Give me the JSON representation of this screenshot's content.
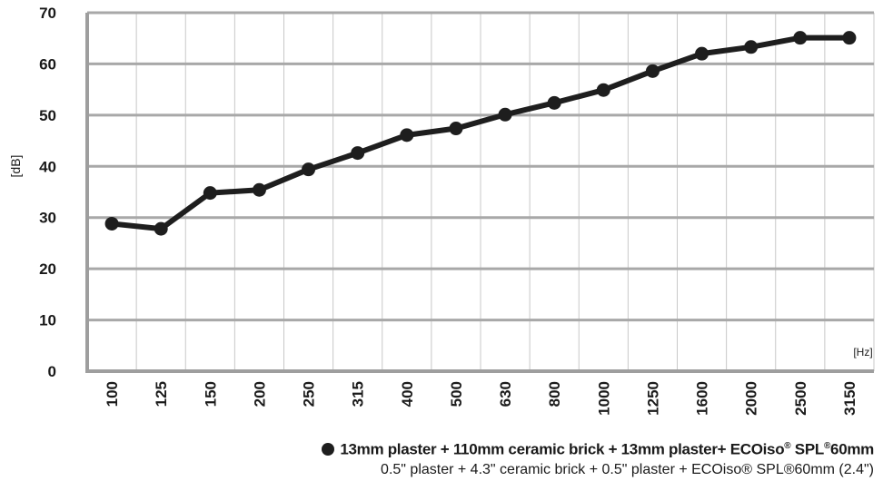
{
  "chart_data": {
    "type": "line",
    "ylabel": "[dB]",
    "xunit": "[Hz]",
    "ylim": [
      0,
      70
    ],
    "yticks": [
      0,
      10,
      20,
      30,
      40,
      50,
      60,
      70
    ],
    "categories": [
      "100",
      "125",
      "150",
      "200",
      "250",
      "315",
      "400",
      "500",
      "630",
      "800",
      "1000",
      "1250",
      "1600",
      "2000",
      "2500",
      "3150"
    ],
    "series": [
      {
        "name": "13mm plaster + 110mm ceramic brick + 13mm plaster+ ECOiso® SPL® 60mm",
        "values": [
          28.8,
          27.8,
          34.8,
          35.4,
          39.4,
          42.6,
          46.1,
          47.4,
          50.1,
          52.4,
          54.9,
          58.6,
          62.0,
          63.3,
          65.1,
          65.1
        ]
      }
    ],
    "grid": true,
    "legend_position": "bottom-right",
    "line_color": "#1e1e1e"
  },
  "legend": {
    "line1_a": "13mm plaster + 110mm ceramic brick  + 13mm plaster+ ECOiso",
    "line1_sup1": "®",
    "line1_b": " SPL",
    "line1_sup2": "®",
    "line1_c": "60mm",
    "line2": "0.5\" plaster + 4.3\" ceramic brick  + 0.5\" plaster + ECOiso® SPL®60mm (2.4\")"
  }
}
